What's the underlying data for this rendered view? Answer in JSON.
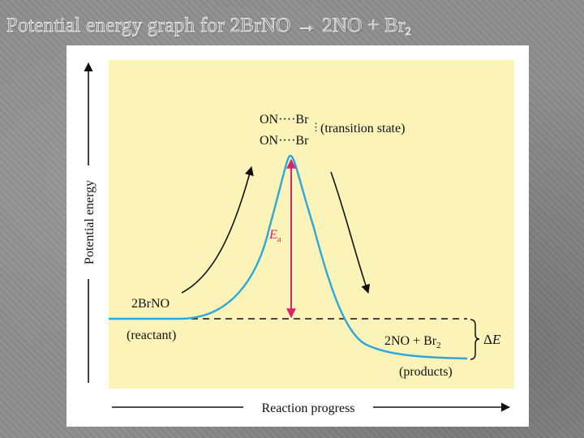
{
  "slide": {
    "title_prefix": "Potential energy graph for 2BrNO",
    "title_arrow": "→",
    "title_suffix": "2NO + Br",
    "title_subscript": "2"
  },
  "diagram": {
    "y_axis_label": "Potential energy",
    "x_axis_label": "Reaction progress",
    "transition_state_line1": "ON····Br",
    "transition_state_line2": "ON····Br",
    "transition_state_label": "(transition state)",
    "activation_energy_symbol": "E",
    "activation_energy_subscript": "a",
    "reactant_formula": "2BrNO",
    "reactant_label": "(reactant)",
    "products_formula": "2NO + Br",
    "products_subscript": "2",
    "products_label": "(products)",
    "delta_symbol": "Δ",
    "delta_letter": "E"
  },
  "colors": {
    "plot_background": "#fbf3b8",
    "curve": "#2aa8dd",
    "activation_arrow": "#d6246e",
    "ink": "#111111"
  }
}
